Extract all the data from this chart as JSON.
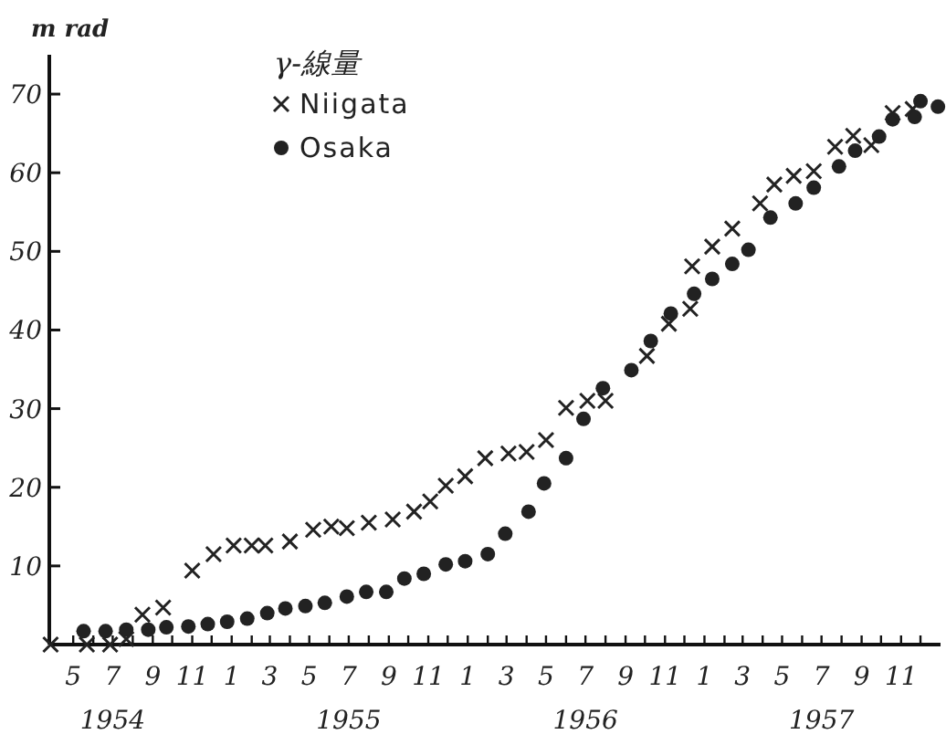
{
  "chart_data": {
    "type": "scatter",
    "ylabel": "m rad",
    "legend_title": "γ-線量",
    "legend": "top left",
    "xlim": [
      "1954-03-25",
      "1958-01-01"
    ],
    "ylim": [
      0,
      75
    ],
    "yticks": [
      10,
      20,
      30,
      40,
      50,
      60,
      70
    ],
    "xticks": [
      {
        "value": "1954-05",
        "label": "5"
      },
      {
        "value": "1954-06",
        "label": null
      },
      {
        "value": "1954-07",
        "label": "7\n1954"
      },
      {
        "value": "1954-08",
        "label": null
      },
      {
        "value": "1954-09",
        "label": "9"
      },
      {
        "value": "1954-10",
        "label": null
      },
      {
        "value": "1954-11",
        "label": "11"
      },
      {
        "value": "1954-12",
        "label": null
      },
      {
        "value": "1955-01",
        "label": "1"
      },
      {
        "value": "1955-02",
        "label": null
      },
      {
        "value": "1955-03",
        "label": "3"
      },
      {
        "value": "1955-04",
        "label": null
      },
      {
        "value": "1955-05",
        "label": "5"
      },
      {
        "value": "1955-06",
        "label": null
      },
      {
        "value": "1955-07",
        "label": "7\n1955"
      },
      {
        "value": "1955-08",
        "label": null
      },
      {
        "value": "1955-09",
        "label": "9"
      },
      {
        "value": "1955-10",
        "label": null
      },
      {
        "value": "1955-11",
        "label": "11"
      },
      {
        "value": "1955-12",
        "label": null
      },
      {
        "value": "1956-01",
        "label": "1"
      },
      {
        "value": "1956-02",
        "label": null
      },
      {
        "value": "1956-03",
        "label": "3"
      },
      {
        "value": "1956-04",
        "label": null
      },
      {
        "value": "1956-05",
        "label": "5"
      },
      {
        "value": "1956-06",
        "label": null
      },
      {
        "value": "1956-07",
        "label": "7\n1956"
      },
      {
        "value": "1956-08",
        "label": null
      },
      {
        "value": "1956-09",
        "label": "9"
      },
      {
        "value": "1956-10",
        "label": null
      },
      {
        "value": "1956-11",
        "label": "11"
      },
      {
        "value": "1956-12",
        "label": null
      },
      {
        "value": "1957-01",
        "label": "1"
      },
      {
        "value": "1957-02",
        "label": null
      },
      {
        "value": "1957-03",
        "label": "3"
      },
      {
        "value": "1957-04",
        "label": null
      },
      {
        "value": "1957-05",
        "label": "5"
      },
      {
        "value": "1957-06",
        "label": null
      },
      {
        "value": "1957-07",
        "label": "7\n1957"
      },
      {
        "value": "1957-08",
        "label": null
      },
      {
        "value": "1957-09",
        "label": "9"
      },
      {
        "value": "1957-10",
        "label": null
      },
      {
        "value": "1957-11",
        "label": "11"
      },
      {
        "value": "1957-12",
        "label": null
      }
    ],
    "series": [
      {
        "name": "Niigata",
        "color": "#222222",
        "marker": "cross",
        "x": [
          "1954-03-27",
          "1954-05-22",
          "1954-06-27",
          "1954-07-22",
          "1954-08-16",
          "1954-09-17",
          "1954-11-01",
          "1954-12-04",
          "1955-01-04",
          "1955-02-01",
          "1955-02-22",
          "1955-04-01",
          "1955-05-07",
          "1955-06-04",
          "1955-06-28",
          "1955-08-01",
          "1955-09-07",
          "1955-10-10",
          "1955-11-04",
          "1955-11-28",
          "1955-12-28",
          "1956-01-28",
          "1956-03-04",
          "1956-04-01",
          "1956-05-01",
          "1956-06-01",
          "1956-07-04",
          "1956-08-01",
          "1956-10-04",
          "1956-11-07",
          "1956-12-10",
          "1956-12-13",
          "1957-01-13",
          "1957-02-13",
          "1957-03-28",
          "1957-04-19",
          "1957-05-19",
          "1957-06-19",
          "1957-07-22",
          "1957-08-19",
          "1957-09-16",
          "1957-10-19",
          "1957-11-19"
        ],
        "values": [
          0,
          0,
          0,
          0.7,
          3.8,
          4.7,
          9.4,
          11.5,
          12.6,
          12.6,
          12.6,
          13.1,
          14.6,
          15.0,
          14.8,
          15.5,
          15.9,
          16.9,
          18.2,
          20.2,
          21.4,
          23.7,
          24.3,
          24.5,
          26.0,
          30.1,
          31.0,
          31.0,
          36.7,
          40.8,
          42.7,
          48.1,
          50.6,
          52.9,
          56.1,
          58.5,
          59.6,
          60.2,
          63.3,
          64.7,
          63.5,
          67.6,
          68.1
        ]
      },
      {
        "name": "Osaka",
        "color": "#222222",
        "marker": "circle",
        "x": [
          "1954-05-17",
          "1954-06-20",
          "1954-07-22",
          "1954-08-25",
          "1954-09-22",
          "1954-10-26",
          "1954-11-25",
          "1954-12-25",
          "1955-01-25",
          "1955-02-25",
          "1955-03-25",
          "1955-04-25",
          "1955-05-25",
          "1955-06-28",
          "1955-07-28",
          "1955-08-28",
          "1955-09-25",
          "1955-10-25",
          "1955-11-28",
          "1955-12-28",
          "1956-02-01",
          "1956-02-28",
          "1956-04-04",
          "1956-04-28",
          "1956-06-01",
          "1956-06-28",
          "1956-07-28",
          "1956-09-10",
          "1956-10-10",
          "1956-11-10",
          "1956-12-16",
          "1957-01-13",
          "1957-02-13",
          "1957-03-10",
          "1957-04-13",
          "1957-05-22",
          "1957-06-19",
          "1957-07-28",
          "1957-08-22",
          "1957-09-28",
          "1957-10-19",
          "1957-11-22",
          "1957-12-01",
          "1957-12-28"
        ],
        "values": [
          1.7,
          1.7,
          1.9,
          1.9,
          2.2,
          2.3,
          2.6,
          2.9,
          3.3,
          4.0,
          4.6,
          4.9,
          5.3,
          6.1,
          6.7,
          6.7,
          8.4,
          9.0,
          10.2,
          10.6,
          11.5,
          14.1,
          16.9,
          20.5,
          23.7,
          28.7,
          32.6,
          34.9,
          38.6,
          42.1,
          44.6,
          46.5,
          48.4,
          50.2,
          54.3,
          56.1,
          58.1,
          60.8,
          62.8,
          64.6,
          66.8,
          67.1,
          69.1,
          68.4
        ]
      }
    ]
  }
}
